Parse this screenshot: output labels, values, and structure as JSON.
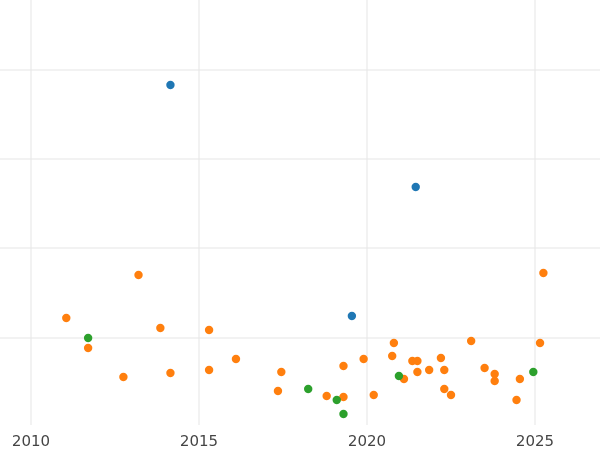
{
  "chart_data": {
    "type": "scatter",
    "xlim": [
      2010,
      2026.9
    ],
    "ylim": [
      0,
      450
    ],
    "x_ticks": [
      2010,
      2015,
      2020,
      2025
    ],
    "x_tick_labels": [
      "2010",
      "2015",
      "2020",
      "2025"
    ],
    "y_gridlines": [
      70,
      159,
      248,
      338
    ],
    "vertical_gridlines": true,
    "y_tick_labels_visible": false,
    "legend": "none",
    "series": [
      {
        "color": "#1f77b4",
        "points": [
          {
            "x": 2014.15,
            "y": 85
          },
          {
            "x": 2021.45,
            "y": 187
          },
          {
            "x": 2019.55,
            "y": 316
          }
        ]
      },
      {
        "color": "#ff7f0e",
        "points": [
          {
            "x": 2011.05,
            "y": 318
          },
          {
            "x": 2011.7,
            "y": 348
          },
          {
            "x": 2012.75,
            "y": 377
          },
          {
            "x": 2013.2,
            "y": 275
          },
          {
            "x": 2013.85,
            "y": 328
          },
          {
            "x": 2014.15,
            "y": 373
          },
          {
            "x": 2015.3,
            "y": 330
          },
          {
            "x": 2015.3,
            "y": 370
          },
          {
            "x": 2016.1,
            "y": 359
          },
          {
            "x": 2017.35,
            "y": 391
          },
          {
            "x": 2017.45,
            "y": 372
          },
          {
            "x": 2018.8,
            "y": 396
          },
          {
            "x": 2019.3,
            "y": 366
          },
          {
            "x": 2019.3,
            "y": 397
          },
          {
            "x": 2019.9,
            "y": 359
          },
          {
            "x": 2020.2,
            "y": 395
          },
          {
            "x": 2020.75,
            "y": 356
          },
          {
            "x": 2020.8,
            "y": 343
          },
          {
            "x": 2021.1,
            "y": 379
          },
          {
            "x": 2021.35,
            "y": 361
          },
          {
            "x": 2021.5,
            "y": 361
          },
          {
            "x": 2021.5,
            "y": 372
          },
          {
            "x": 2021.85,
            "y": 370
          },
          {
            "x": 2022.2,
            "y": 358
          },
          {
            "x": 2022.3,
            "y": 370
          },
          {
            "x": 2022.3,
            "y": 389
          },
          {
            "x": 2022.5,
            "y": 395
          },
          {
            "x": 2023.1,
            "y": 341
          },
          {
            "x": 2023.5,
            "y": 368
          },
          {
            "x": 2023.8,
            "y": 374
          },
          {
            "x": 2023.8,
            "y": 381
          },
          {
            "x": 2024.45,
            "y": 400
          },
          {
            "x": 2024.55,
            "y": 379
          },
          {
            "x": 2025.15,
            "y": 343
          },
          {
            "x": 2025.25,
            "y": 273
          }
        ]
      },
      {
        "color": "#2ca02c",
        "points": [
          {
            "x": 2011.7,
            "y": 338
          },
          {
            "x": 2018.25,
            "y": 389
          },
          {
            "x": 2019.1,
            "y": 400
          },
          {
            "x": 2019.3,
            "y": 414
          },
          {
            "x": 2020.95,
            "y": 376
          },
          {
            "x": 2024.95,
            "y": 372
          }
        ]
      }
    ]
  }
}
